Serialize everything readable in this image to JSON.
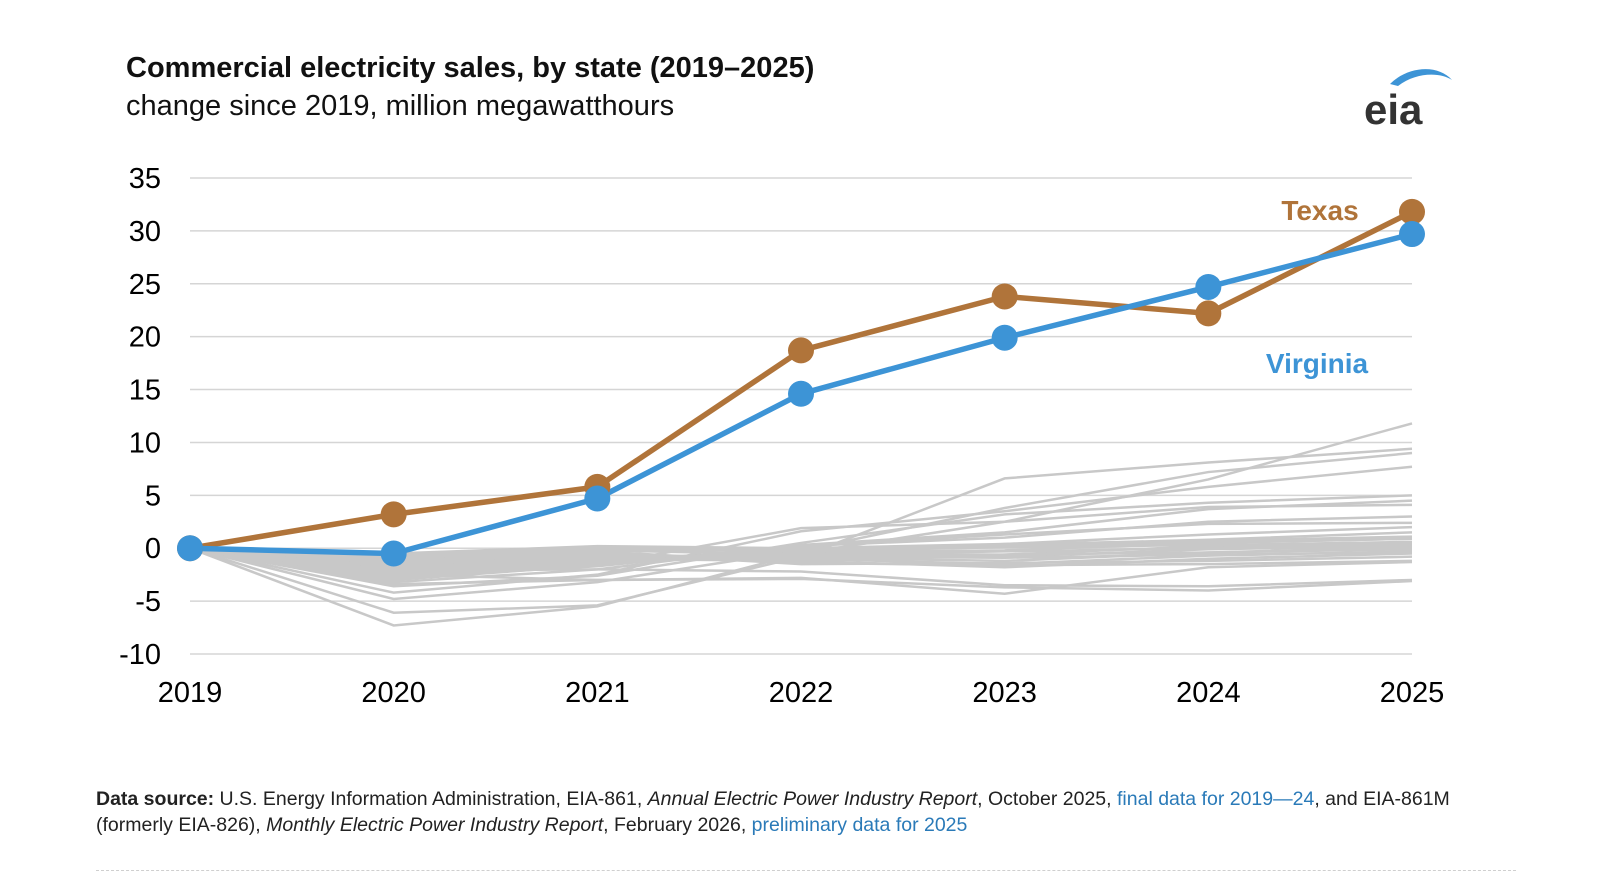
{
  "header": {
    "title": "Commercial electricity sales, by state (2019–2025)",
    "subtitle": "change since 2019, million megawatthours",
    "logo_text": "eia"
  },
  "colors": {
    "texas": "#b0743a",
    "virginia": "#3d94d6",
    "other_states": "#c8c8c8",
    "grid": "#d5d5d5",
    "link": "#2a7ab8"
  },
  "chart_data": {
    "type": "line",
    "title": "Commercial electricity sales, by state (2019–2025)",
    "subtitle": "change since 2019, million megawatthours",
    "x": [
      "2019",
      "2020",
      "2021",
      "2022",
      "2023",
      "2024",
      "2025"
    ],
    "ylim": [
      -10,
      35
    ],
    "yticks": [
      "-10",
      "-5",
      "0",
      "5",
      "10",
      "15",
      "20",
      "25",
      "30",
      "35"
    ],
    "grid": "horizontal",
    "series": [
      {
        "name": "Texas",
        "color": "#b0743a",
        "values": [
          0,
          3.2,
          5.8,
          18.7,
          23.8,
          22.2,
          31.8
        ],
        "highlight": true
      },
      {
        "name": "Virginia",
        "color": "#3d94d6",
        "values": [
          0,
          -0.5,
          4.7,
          14.6,
          19.9,
          24.7,
          29.7
        ],
        "highlight": true
      }
    ],
    "other_states": [
      [
        0,
        -7.3,
        -5.5,
        -0.5,
        2.5,
        6.5,
        11.8
      ],
      [
        0,
        -6.1,
        -5.4,
        -0.8,
        6.6,
        8.1,
        9.4
      ],
      [
        0,
        -4.8,
        -3.2,
        -0.2,
        3.8,
        7.2,
        9.0
      ],
      [
        0,
        -4.2,
        -2.5,
        1.6,
        3.5,
        5.8,
        7.7
      ],
      [
        0,
        -3.6,
        -2.6,
        0.5,
        3.2,
        4.3,
        5.0
      ],
      [
        0,
        -3.2,
        -2.0,
        0.3,
        1.5,
        3.7,
        4.5
      ],
      [
        0,
        -3.0,
        -1.6,
        1.9,
        2.5,
        3.9,
        4.1
      ],
      [
        0,
        -2.8,
        -1.7,
        0.2,
        1.0,
        2.5,
        3.0
      ],
      [
        0,
        -2.6,
        -1.5,
        0.2,
        1.3,
        2.3,
        2.4
      ],
      [
        0,
        -2.4,
        -1.3,
        -0.5,
        0.4,
        1.3,
        2.0
      ],
      [
        0,
        -2.2,
        -1.2,
        -0.2,
        0.3,
        0.8,
        1.5
      ],
      [
        0,
        -2.0,
        -1.0,
        -0.4,
        -0.2,
        0.5,
        0.9
      ],
      [
        0,
        -1.8,
        -0.9,
        -0.5,
        -0.6,
        0.2,
        0.5
      ],
      [
        0,
        -1.6,
        -0.8,
        -0.7,
        -0.8,
        -0.1,
        0.2
      ],
      [
        0,
        -1.5,
        -0.8,
        -0.9,
        -1.2,
        -0.4,
        -0.1
      ],
      [
        0,
        -1.3,
        -0.6,
        -1.0,
        -1.5,
        -0.7,
        -0.3
      ],
      [
        0,
        -1.2,
        -0.5,
        -1.2,
        -1.8,
        -1.0,
        -0.5
      ],
      [
        0,
        -1.0,
        -0.4,
        -1.5,
        -1.4,
        -1.2,
        -0.8
      ],
      [
        0,
        -0.9,
        -0.3,
        -1.4,
        -1.6,
        -1.5,
        -1.2
      ],
      [
        0,
        -0.8,
        -0.2,
        -0.6,
        -0.3,
        0.0,
        0.4
      ],
      [
        0,
        -0.7,
        -0.1,
        -0.3,
        0.1,
        0.3,
        0.6
      ],
      [
        0,
        -0.6,
        0.0,
        -0.1,
        0.2,
        0.5,
        0.9
      ],
      [
        0,
        -0.5,
        0.2,
        0.0,
        0.4,
        0.7,
        1.1
      ],
      [
        0,
        -2.5,
        -3.0,
        -2.8,
        -4.3,
        -1.8,
        -1.3
      ],
      [
        0,
        -3.4,
        -3.0,
        -2.9,
        -3.7,
        -4.0,
        -3.1
      ],
      [
        0,
        -2.1,
        -2.0,
        -2.2,
        -3.5,
        -3.6,
        -3.0
      ],
      [
        0,
        -1.4,
        -1.0,
        -1.2,
        -0.6,
        -0.4,
        0.1
      ],
      [
        0,
        -1.1,
        -0.7,
        -0.8,
        -0.9,
        -0.6,
        -0.4
      ]
    ],
    "annotations": [
      "Texas",
      "Virginia"
    ]
  },
  "footer": {
    "source_lead": "Data source:",
    "source_1": " U.S. Energy Information Administration, EIA-861, ",
    "source_2_italic": "Annual Electric Power Industry Report",
    "source_3": ", October 2025, ",
    "source_link_1": "final data for 2019—24",
    "source_4": ", and EIA-861M (formerly EIA-826), ",
    "source_5_italic": "Monthly Electric Power Industry Report",
    "source_6": ", February 2026, ",
    "source_link_2": "preliminary data for 2025"
  }
}
